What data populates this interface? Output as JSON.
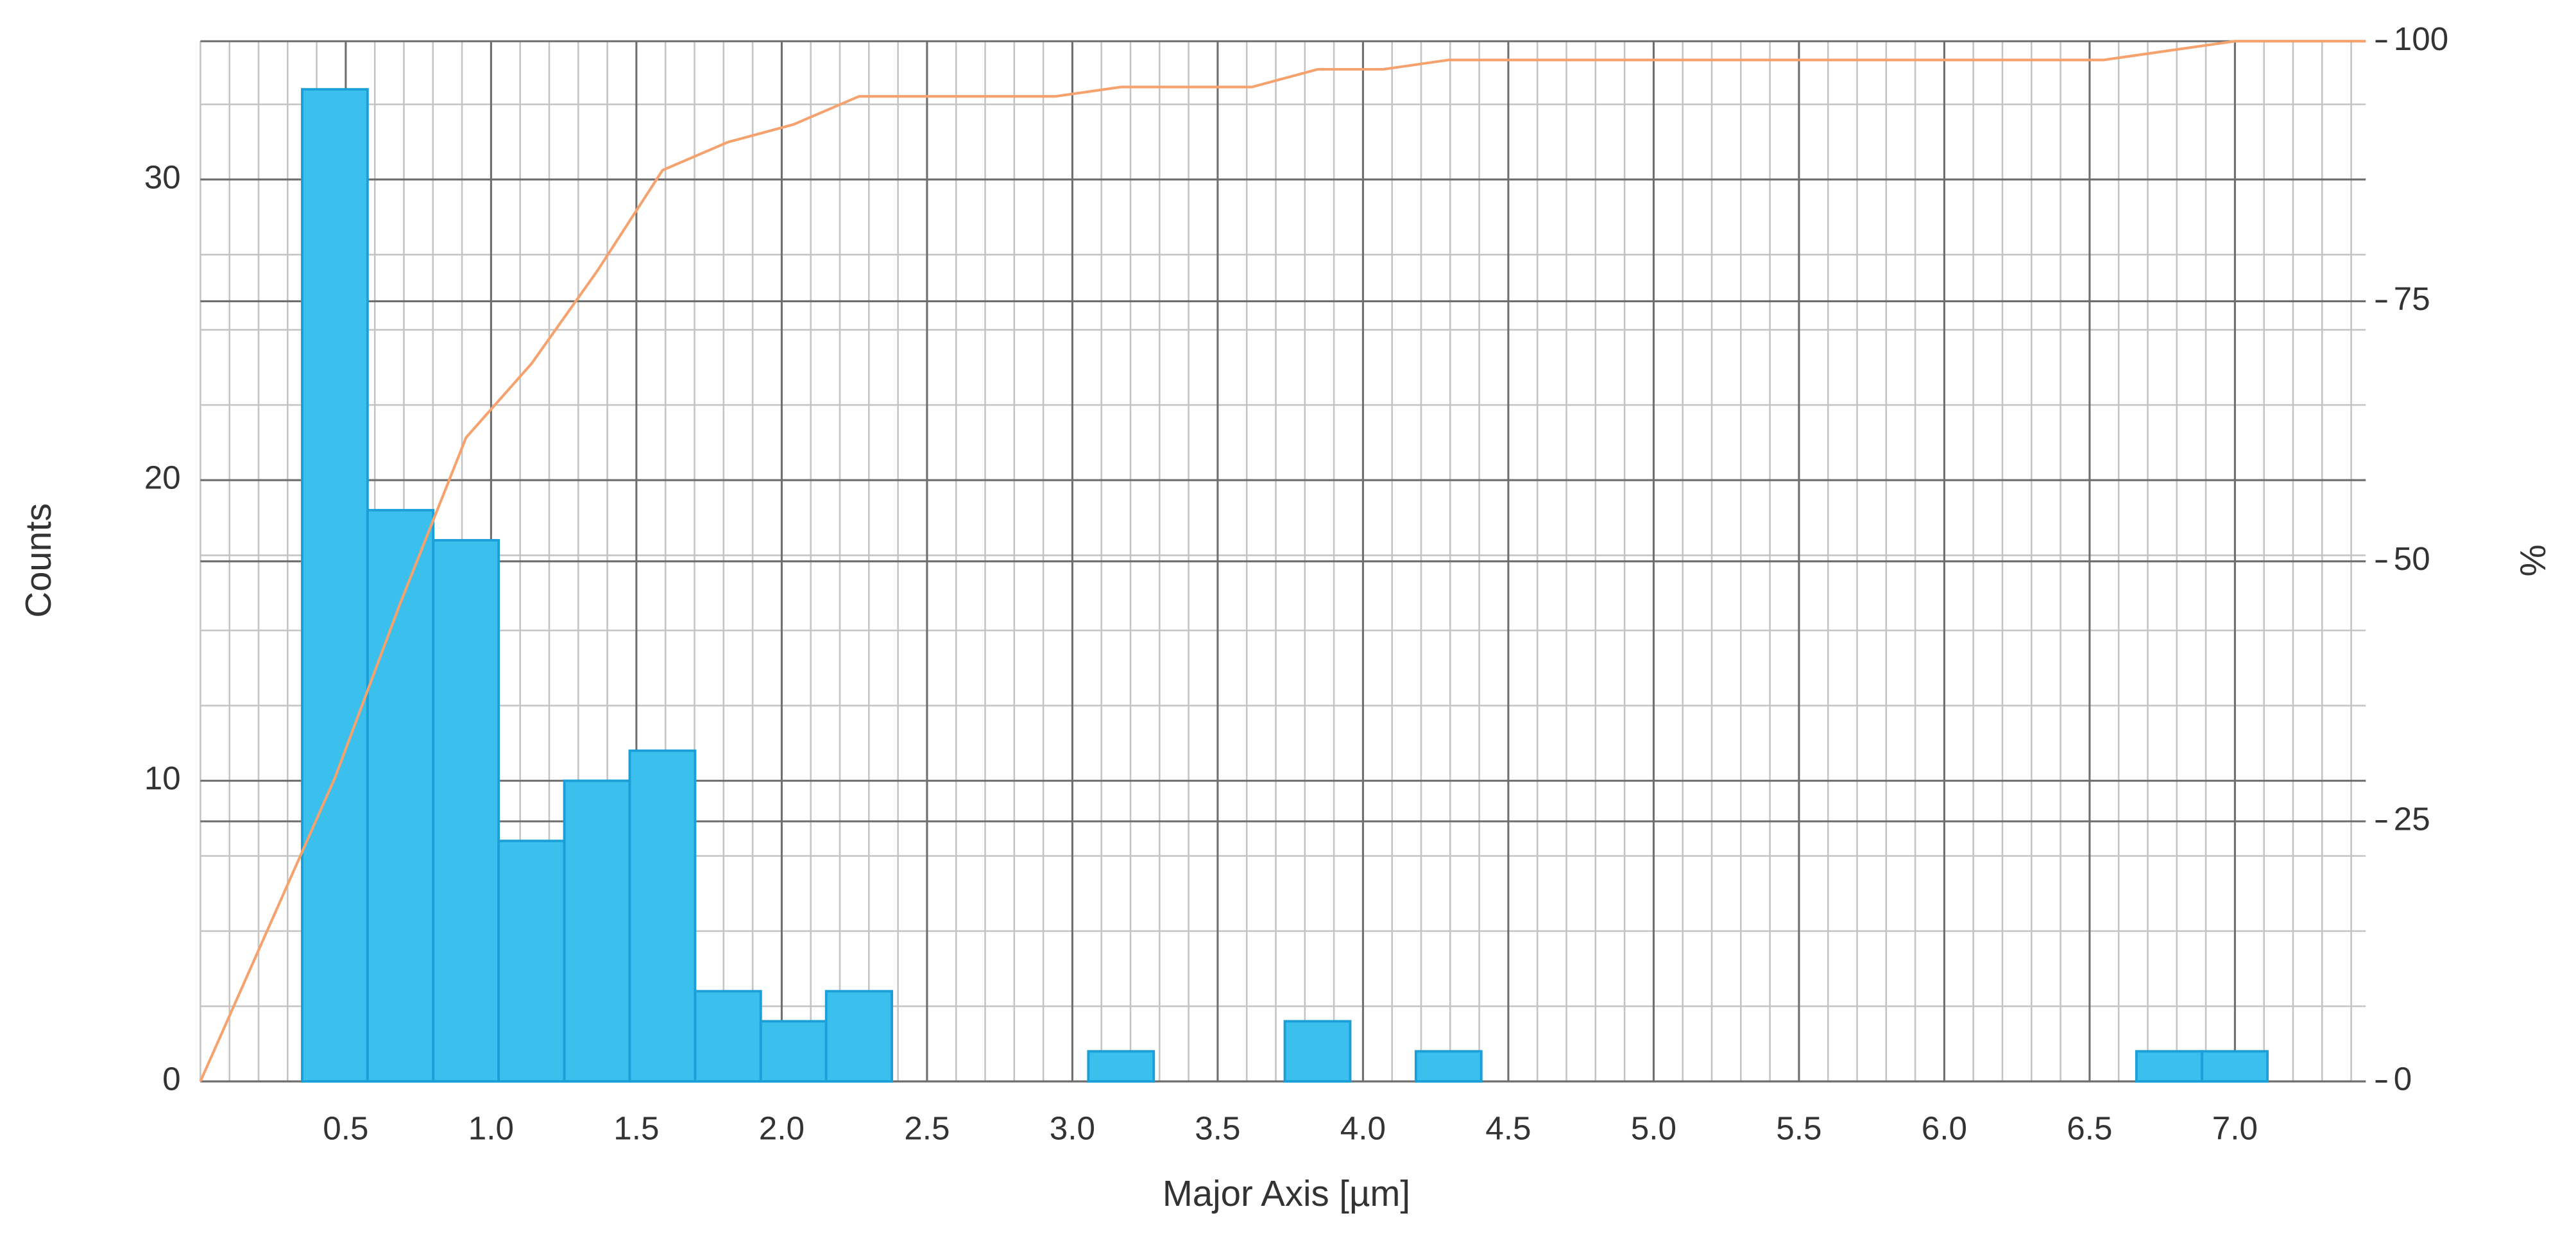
{
  "chart_data": {
    "type": "histogram",
    "x_label": "Major Axis [µm]",
    "y_label": "Counts",
    "y2_label": "%",
    "bins": [
      0.35,
      0.575,
      0.801,
      1.026,
      1.252,
      1.477,
      1.702,
      1.928,
      2.153,
      2.379,
      2.604,
      2.829,
      3.055,
      3.28,
      3.506,
      3.731,
      3.956,
      4.182,
      4.407,
      4.633,
      4.858,
      5.083,
      5.309,
      5.534,
      5.76,
      5.985,
      6.21,
      6.436,
      6.661,
      6.887,
      7.112
    ],
    "counts": [
      33,
      19,
      18,
      8,
      10,
      11,
      3,
      2,
      3,
      0,
      0,
      0,
      1,
      0,
      0,
      2,
      0,
      1,
      0,
      0,
      0,
      0,
      0,
      0,
      0,
      0,
      0,
      0,
      1,
      1
    ],
    "color": "#3bbfed",
    "edge_color": "#1a9fd8",
    "series": [
      {
        "type": "line",
        "axis": "y2",
        "color": "#f5a26e",
        "x": [
          0,
          0.463,
          0.688,
          0.914,
          1.139,
          1.365,
          1.59,
          1.815,
          2.041,
          2.266,
          2.492,
          2.717,
          2.942,
          3.168,
          3.393,
          3.618,
          3.844,
          4.069,
          4.295,
          4.52,
          4.746,
          4.971,
          5.196,
          5.422,
          5.647,
          5.872,
          6.098,
          6.323,
          6.549,
          6.774,
          7.0,
          7.45
        ],
        "values": [
          0,
          29.2,
          46.0,
          61.9,
          69.0,
          77.9,
          87.6,
          90.3,
          92.0,
          94.7,
          94.7,
          94.7,
          94.7,
          95.6,
          95.6,
          95.6,
          97.3,
          97.3,
          98.2,
          98.2,
          98.2,
          98.2,
          98.2,
          98.2,
          98.2,
          98.2,
          98.2,
          98.2,
          98.2,
          99.1,
          100,
          100
        ]
      }
    ],
    "xlim": [
      0,
      7.45
    ],
    "xticks": [
      0.5,
      {
        "value": 1,
        "label": "1.0"
      },
      1.5,
      {
        "value": 2,
        "label": "2.0"
      },
      2.5,
      {
        "value": 3,
        "label": "3.0"
      },
      3.5,
      {
        "value": 4,
        "label": "4.0"
      },
      4.5,
      {
        "value": 5,
        "label": "5.0"
      },
      5.5,
      {
        "value": 6,
        "label": "6.0"
      },
      6.5,
      {
        "value": 7,
        "label": "7.0"
      }
    ],
    "ylim": [
      0,
      34.6
    ],
    "yticks": [
      0,
      10,
      20,
      30
    ],
    "y2lim": [
      0,
      100
    ],
    "y2ticks": [
      0,
      25,
      50,
      75,
      100
    ],
    "grid": true,
    "minor_grid": true
  }
}
